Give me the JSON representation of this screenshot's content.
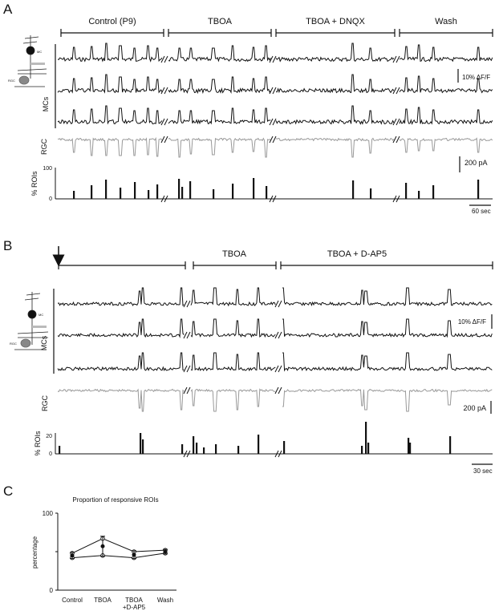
{
  "panel_a": {
    "letter": "A",
    "conditions": [
      "Control (P9)",
      "TBOA",
      "TBOA + DNQX",
      "Wash"
    ],
    "mc_axis_label": "MCs",
    "rgc_label": "RGC",
    "rois_label": "% ROIs",
    "rois_tick_top": "100",
    "rois_tick_bottom": "0",
    "df_scale_label": "10% ΔF/F",
    "current_scale_label": "200 pA",
    "time_scale_label": "60 sec",
    "schematic_mc_label": "MC",
    "schematic_rgc_label": "RGC"
  },
  "panel_b": {
    "letter": "B",
    "conditions": [
      "TBOA",
      "TBOA + D-AP5"
    ],
    "mc_axis_label": "MCs",
    "rgc_label": "RGC",
    "rois_label": "% ROIs",
    "rois_tick_top": "20",
    "rois_tick_bottom": "0",
    "df_scale_label": "10% ΔF/F",
    "current_scale_label": "200 pA",
    "time_scale_label": "30 sec",
    "schematic_mc_label": "MC",
    "schematic_rgc_label": "RGC"
  },
  "panel_c": {
    "letter": "C",
    "chart_data": {
      "type": "line",
      "title": "Proportion of responsive ROIs",
      "ylabel": "percentage",
      "xlabel": "",
      "categories": [
        "Control",
        "TBOA",
        "TBOA +D-AP5",
        "Wash"
      ],
      "ylim": [
        0,
        100
      ],
      "yticks": [
        "0",
        "50",
        "100"
      ],
      "mean": {
        "values": [
          45,
          57,
          46,
          50
        ],
        "err": [
          4,
          13,
          5,
          3
        ]
      },
      "series": [
        {
          "values": [
            48,
            67,
            50,
            52
          ]
        },
        {
          "values": [
            42,
            45,
            42,
            48
          ]
        }
      ]
    }
  }
}
